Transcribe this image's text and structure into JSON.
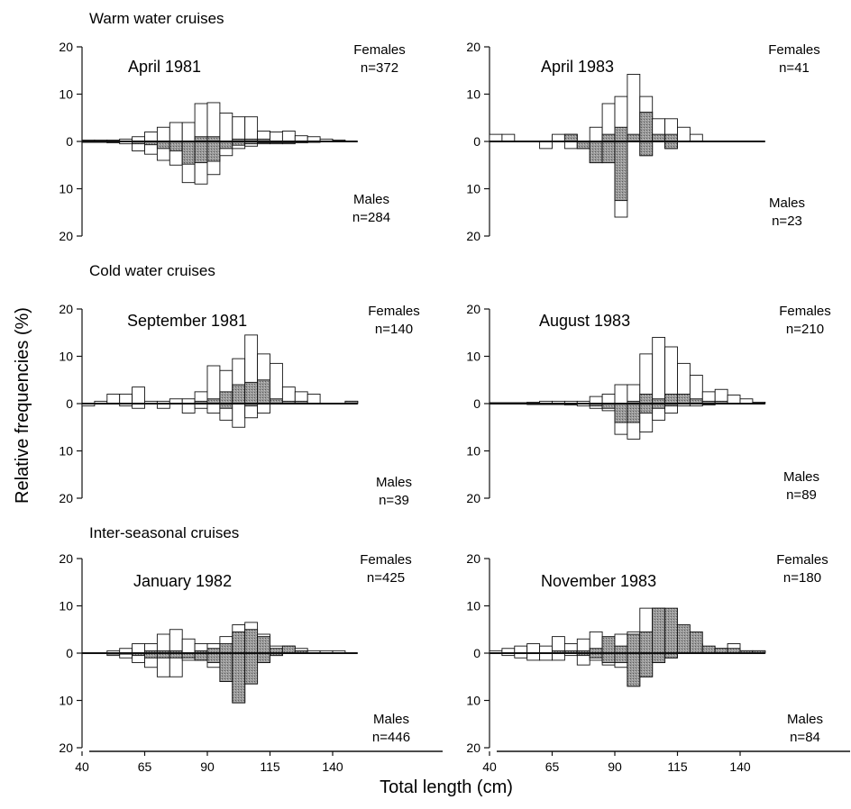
{
  "figure": {
    "ylabel": "Relative frequencies (%)",
    "xlabel": "Total length (cm)",
    "sections": [
      "Warm water cruises",
      "Cold water cruises",
      "Inter-seasonal cruises"
    ],
    "x_ticks": [
      "40",
      "65",
      "90",
      "115",
      "140"
    ],
    "y_ticks": [
      "20",
      "10",
      "0",
      "10",
      "20"
    ]
  },
  "chart_data": [
    {
      "type": "bar",
      "title": "April 1981",
      "section": "Warm water cruises",
      "females_label": "Females",
      "females_n": "n=372",
      "males_label": "Males",
      "males_n": "n=284",
      "bin_width_cm": 5,
      "xlim": [
        40,
        150
      ],
      "ylim": [
        -20,
        20
      ],
      "x": [
        42.5,
        47.5,
        52.5,
        57.5,
        62.5,
        67.5,
        72.5,
        77.5,
        82.5,
        87.5,
        92.5,
        97.5,
        102.5,
        107.5,
        112.5,
        117.5,
        122.5,
        127.5,
        132.5,
        137.5,
        142.5,
        147.5
      ],
      "series": [
        {
          "name": "Females",
          "values": [
            0.3,
            0.3,
            0.3,
            0.5,
            1,
            2,
            3,
            4,
            4,
            8,
            8.2,
            6,
            5.2,
            5.2,
            2.2,
            2,
            2.2,
            1.2,
            1,
            0.5,
            0.3,
            0
          ]
        },
        {
          "name": "Females",
          "values": [
            0,
            0,
            0,
            0,
            0,
            0,
            0,
            0,
            0,
            1,
            1,
            0,
            0.5,
            0.5,
            0.5,
            0,
            0,
            0,
            0,
            0,
            0,
            0
          ]
        },
        {
          "name": "Males",
          "values": [
            0.2,
            0.2,
            0.3,
            0.5,
            2,
            2.7,
            4,
            5,
            8.7,
            9,
            7,
            3,
            1.5,
            1,
            0.5,
            0.5,
            0.5,
            0.3,
            0.2,
            0,
            0,
            0
          ]
        },
        {
          "name": "Males",
          "values": [
            0,
            0,
            0,
            0,
            0.5,
            0.7,
            1.5,
            2,
            4.8,
            4.5,
            4.2,
            1.5,
            0.8,
            0.5,
            0.3,
            0.3,
            0.3,
            0,
            0,
            0,
            0,
            0
          ]
        }
      ]
    },
    {
      "type": "bar",
      "title": "April 1983",
      "section": "Warm water cruises",
      "females_label": "Females",
      "females_n": "n=41",
      "males_label": "Males",
      "males_n": "n=23",
      "bin_width_cm": 5,
      "xlim": [
        40,
        150
      ],
      "ylim": [
        -20,
        20
      ],
      "x": [
        42.5,
        47.5,
        52.5,
        57.5,
        62.5,
        67.5,
        72.5,
        77.5,
        82.5,
        87.5,
        92.5,
        97.5,
        102.5,
        107.5,
        112.5,
        117.5,
        122.5,
        127.5,
        132.5,
        137.5,
        142.5,
        147.5
      ],
      "series": [
        {
          "name": "Females",
          "values": [
            1.5,
            1.5,
            0,
            0,
            0,
            1.5,
            1.5,
            0,
            3,
            8,
            9.5,
            14.2,
            9.5,
            4.8,
            4.8,
            3,
            1.5,
            0,
            0,
            0,
            0,
            0
          ]
        },
        {
          "name": "Females",
          "values": [
            0,
            0,
            0,
            0,
            0,
            0,
            1.5,
            0,
            0,
            1.5,
            3,
            1.5,
            6.2,
            1.5,
            1.5,
            0,
            0,
            0,
            0,
            0,
            0,
            0
          ]
        },
        {
          "name": "Males",
          "values": [
            0,
            0,
            0,
            0,
            1.5,
            0,
            1.5,
            1.5,
            4.5,
            4.5,
            16,
            0,
            3,
            0,
            1.5,
            0,
            0,
            0,
            0,
            0,
            0,
            0
          ]
        },
        {
          "name": "Males",
          "values": [
            0,
            0,
            0,
            0,
            0,
            0,
            0,
            1.5,
            4.5,
            4.5,
            12.5,
            0,
            3,
            0,
            1.5,
            0,
            0,
            0,
            0,
            0,
            0,
            0
          ]
        }
      ]
    },
    {
      "type": "bar",
      "title": "September 1981",
      "section": "Cold water cruises",
      "females_label": "Females",
      "females_n": "n=140",
      "males_label": "Males",
      "males_n": "n=39",
      "bin_width_cm": 5,
      "xlim": [
        40,
        150
      ],
      "ylim": [
        -20,
        20
      ],
      "x": [
        42.5,
        47.5,
        52.5,
        57.5,
        62.5,
        67.5,
        72.5,
        77.5,
        82.5,
        87.5,
        92.5,
        97.5,
        102.5,
        107.5,
        112.5,
        117.5,
        122.5,
        127.5,
        132.5,
        137.5,
        142.5,
        147.5
      ],
      "series": [
        {
          "name": "Females",
          "values": [
            0,
            0.5,
            2,
            2,
            3.5,
            0.5,
            0.5,
            1,
            1,
            2.5,
            8,
            7,
            9.5,
            14.5,
            10.5,
            8.5,
            3.5,
            2.5,
            2,
            0,
            0,
            0.5
          ]
        },
        {
          "name": "Females",
          "values": [
            0,
            0,
            0,
            0,
            0,
            0,
            0,
            0,
            0,
            0.5,
            1,
            2.5,
            4,
            4.5,
            5,
            1,
            0.5,
            0.5,
            0,
            0,
            0,
            0.5
          ]
        },
        {
          "name": "Males",
          "values": [
            0.5,
            0,
            0,
            0.5,
            1,
            0,
            1,
            0,
            2,
            1,
            2,
            3.5,
            5,
            3,
            2,
            0,
            0,
            0,
            0,
            0,
            0,
            0
          ]
        },
        {
          "name": "Males",
          "values": [
            0,
            0,
            0,
            0,
            0,
            0,
            0,
            0,
            0,
            0,
            0,
            1,
            0,
            0.5,
            0,
            0,
            0,
            0,
            0,
            0,
            0,
            0
          ]
        }
      ]
    },
    {
      "type": "bar",
      "title": "August 1983",
      "section": "Cold water cruises",
      "females_label": "Females",
      "females_n": "n=210",
      "males_label": "Males",
      "males_n": "n=89",
      "bin_width_cm": 5,
      "xlim": [
        40,
        150
      ],
      "ylim": [
        -20,
        20
      ],
      "x": [
        42.5,
        47.5,
        52.5,
        57.5,
        62.5,
        67.5,
        72.5,
        77.5,
        82.5,
        87.5,
        92.5,
        97.5,
        102.5,
        107.5,
        112.5,
        117.5,
        122.5,
        127.5,
        132.5,
        137.5,
        142.5,
        147.5
      ],
      "series": [
        {
          "name": "Females",
          "values": [
            0.2,
            0.2,
            0.2,
            0.3,
            0.5,
            0.5,
            0.5,
            0.5,
            1.5,
            2,
            4,
            4,
            10.5,
            14,
            12,
            8.5,
            6,
            2.5,
            3,
            1.8,
            1,
            0.3
          ]
        },
        {
          "name": "Females",
          "values": [
            0,
            0,
            0,
            0,
            0,
            0,
            0,
            0,
            0,
            0,
            0,
            0.5,
            2,
            1,
            2,
            2,
            1,
            0.5,
            0.5,
            0,
            0,
            0
          ]
        },
        {
          "name": "Males",
          "values": [
            0,
            0,
            0,
            0.2,
            0.2,
            0.2,
            0.3,
            0.5,
            1,
            1.5,
            6.5,
            7.5,
            6,
            3.5,
            2,
            0.5,
            0.5,
            0.3,
            0,
            0,
            0,
            0
          ]
        },
        {
          "name": "Males",
          "values": [
            0,
            0,
            0,
            0,
            0,
            0,
            0,
            0,
            0.5,
            1,
            4,
            4,
            2,
            1,
            0.5,
            0,
            0,
            0,
            0,
            0,
            0,
            0
          ]
        }
      ]
    },
    {
      "type": "bar",
      "title": "January 1982",
      "section": "Inter-seasonal cruises",
      "females_label": "Females",
      "females_n": "n=425",
      "males_label": "Males",
      "males_n": "n=446",
      "bin_width_cm": 5,
      "xlim": [
        40,
        150
      ],
      "ylim": [
        -20,
        20
      ],
      "x": [
        42.5,
        47.5,
        52.5,
        57.5,
        62.5,
        67.5,
        72.5,
        77.5,
        82.5,
        87.5,
        92.5,
        97.5,
        102.5,
        107.5,
        112.5,
        117.5,
        122.5,
        127.5,
        132.5,
        137.5,
        142.5,
        147.5
      ],
      "series": [
        {
          "name": "Females",
          "values": [
            0,
            0,
            0.5,
            1,
            2,
            2,
            4,
            5,
            3,
            2,
            2,
            3.5,
            6,
            6.5,
            4,
            1.5,
            1.5,
            1,
            0.5,
            0.5,
            0.5,
            0
          ]
        },
        {
          "name": "Females",
          "values": [
            0,
            0,
            0,
            0,
            0,
            0.5,
            0.5,
            0.5,
            0,
            0.5,
            1,
            2,
            4.5,
            5,
            3.5,
            1,
            1.5,
            0.5,
            0,
            0,
            0,
            0
          ]
        },
        {
          "name": "Males",
          "values": [
            0,
            0,
            0.5,
            1,
            2,
            3,
            5,
            5,
            1.5,
            1.5,
            3,
            6,
            10.5,
            6.5,
            2,
            0.5,
            0,
            0,
            0,
            0,
            0,
            0
          ]
        },
        {
          "name": "Males",
          "values": [
            0,
            0,
            0.2,
            0.2,
            0.5,
            1,
            1,
            1,
            1,
            1.5,
            2,
            6,
            10.5,
            6.5,
            2,
            0.5,
            0,
            0,
            0,
            0,
            0,
            0
          ]
        }
      ]
    },
    {
      "type": "bar",
      "title": "November 1983",
      "section": "Inter-seasonal cruises",
      "females_label": "Females",
      "females_n": "n=180",
      "males_label": "Males",
      "males_n": "n=84",
      "bin_width_cm": 5,
      "xlim": [
        40,
        150
      ],
      "ylim": [
        -20,
        20
      ],
      "x": [
        42.5,
        47.5,
        52.5,
        57.5,
        62.5,
        67.5,
        72.5,
        77.5,
        82.5,
        87.5,
        92.5,
        97.5,
        102.5,
        107.5,
        112.5,
        117.5,
        122.5,
        127.5,
        132.5,
        137.5,
        142.5,
        147.5
      ],
      "series": [
        {
          "name": "Females",
          "values": [
            0.5,
            1,
            1.5,
            2,
            1.5,
            3.5,
            2,
            3,
            4.5,
            3,
            4,
            4.5,
            9.5,
            9.5,
            6,
            4.5,
            2,
            1,
            1,
            2,
            0.5,
            0.5
          ]
        },
        {
          "name": "Females",
          "values": [
            0,
            0,
            0,
            0,
            0,
            0.5,
            0.5,
            0.5,
            1,
            3.5,
            1.5,
            4,
            4.5,
            9.5,
            9.5,
            6,
            4.5,
            1.5,
            1,
            1,
            0.5,
            0.5
          ]
        },
        {
          "name": "Males",
          "values": [
            0,
            0.5,
            1,
            1.5,
            1.5,
            1.5,
            0.5,
            2.5,
            1.5,
            2.5,
            3,
            7,
            5,
            2,
            1,
            0,
            0,
            0,
            0,
            0,
            0,
            0
          ]
        },
        {
          "name": "Males",
          "values": [
            0,
            0,
            0,
            0,
            0,
            0,
            0,
            0.5,
            1,
            2,
            2,
            7,
            5,
            2,
            1,
            0,
            0,
            0,
            0,
            0,
            0,
            0
          ]
        }
      ]
    }
  ]
}
